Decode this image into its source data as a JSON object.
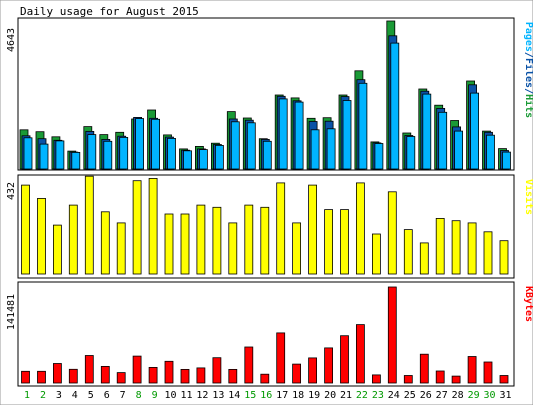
{
  "title": "Daily usage for August 2015",
  "colors": {
    "hits": "#1a9a36",
    "files": "#0a52a6",
    "pages": "#00b4ff",
    "visits": "#ffff00",
    "kbytes": "#ff0000",
    "weekend_day": "#009900",
    "weekday": "#000000",
    "panel_bg": "#ffffff",
    "frame": "#000000"
  },
  "chart_data": [
    {
      "type": "bar",
      "title": "Daily usage for August 2015",
      "ylabel_parts": [
        {
          "text": "Pages",
          "color": "#00b4ff"
        },
        {
          "text": "/",
          "color": "#0a52a6"
        },
        {
          "text": "Files",
          "color": "#0a52a6"
        },
        {
          "text": "/",
          "color": "#0a52a6"
        },
        {
          "text": "Hits",
          "color": "#1a9a36"
        }
      ],
      "ymax_label": "4643",
      "ylim": [
        0,
        4643
      ],
      "categories": [
        "1",
        "2",
        "3",
        "4",
        "5",
        "6",
        "7",
        "8",
        "9",
        "10",
        "11",
        "12",
        "13",
        "14",
        "15",
        "16",
        "17",
        "18",
        "19",
        "20",
        "21",
        "22",
        "23",
        "24",
        "25",
        "26",
        "27",
        "28",
        "29",
        "30",
        "31"
      ],
      "series": [
        {
          "name": "Hits",
          "values": [
            1230,
            1170,
            1010,
            560,
            1330,
            1080,
            1150,
            1570,
            1850,
            1070,
            630,
            710,
            810,
            1800,
            1600,
            950,
            2320,
            2230,
            1590,
            1610,
            2320,
            3080,
            850,
            4643,
            1130,
            2510,
            2000,
            1520,
            2760,
            1190,
            640
          ]
        },
        {
          "name": "Files",
          "values": [
            1040,
            950,
            900,
            530,
            1180,
            930,
            1030,
            1620,
            1590,
            1000,
            590,
            630,
            770,
            1570,
            1530,
            930,
            2280,
            2140,
            1490,
            1500,
            2270,
            2800,
            820,
            4180,
            1050,
            2440,
            1900,
            1320,
            2640,
            1150,
            580
          ]
        },
        {
          "name": "Pages",
          "values": [
            980,
            780,
            880,
            520,
            1080,
            870,
            990,
            1580,
            1560,
            960,
            570,
            610,
            740,
            1480,
            1450,
            870,
            2200,
            2100,
            1230,
            1260,
            2150,
            2690,
            800,
            3950,
            1020,
            2350,
            1780,
            1190,
            2380,
            1060,
            530
          ]
        }
      ]
    },
    {
      "type": "bar",
      "ylabel": "Visits",
      "ymax_label": "432",
      "ylim": [
        0,
        432
      ],
      "categories": [
        "1",
        "2",
        "3",
        "4",
        "5",
        "6",
        "7",
        "8",
        "9",
        "10",
        "11",
        "12",
        "13",
        "14",
        "15",
        "16",
        "17",
        "18",
        "19",
        "20",
        "21",
        "22",
        "23",
        "24",
        "25",
        "26",
        "27",
        "28",
        "29",
        "30",
        "31"
      ],
      "series": [
        {
          "name": "Visits",
          "values": [
            400,
            340,
            220,
            310,
            440,
            280,
            230,
            420,
            430,
            270,
            270,
            310,
            300,
            230,
            310,
            300,
            410,
            230,
            400,
            290,
            290,
            410,
            180,
            370,
            200,
            140,
            250,
            240,
            230,
            190,
            150
          ]
        }
      ]
    },
    {
      "type": "bar",
      "ylabel": "KBytes",
      "ymax_label": "141481",
      "ylim": [
        0,
        141481
      ],
      "categories": [
        "1",
        "2",
        "3",
        "4",
        "5",
        "6",
        "7",
        "8",
        "9",
        "10",
        "11",
        "12",
        "13",
        "14",
        "15",
        "16",
        "17",
        "18",
        "19",
        "20",
        "21",
        "22",
        "23",
        "24",
        "25",
        "26",
        "27",
        "28",
        "29",
        "30",
        "31"
      ],
      "series": [
        {
          "name": "KBytes",
          "values": [
            17300,
            17200,
            28800,
            20200,
            40500,
            24400,
            15300,
            39700,
            23000,
            32000,
            20000,
            22300,
            37300,
            20000,
            53000,
            13000,
            73900,
            27800,
            37000,
            51800,
            69700,
            86100,
            12000,
            141481,
            11000,
            42500,
            17700,
            10200,
            39000,
            30900,
            11000
          ]
        }
      ]
    }
  ],
  "day_label_colors": [
    "#009900",
    "#009900",
    "#000000",
    "#000000",
    "#000000",
    "#000000",
    "#000000",
    "#009900",
    "#009900",
    "#000000",
    "#000000",
    "#000000",
    "#000000",
    "#000000",
    "#009900",
    "#009900",
    "#000000",
    "#000000",
    "#000000",
    "#000000",
    "#000000",
    "#009900",
    "#009900",
    "#000000",
    "#000000",
    "#000000",
    "#000000",
    "#000000",
    "#009900",
    "#009900",
    "#000000"
  ]
}
